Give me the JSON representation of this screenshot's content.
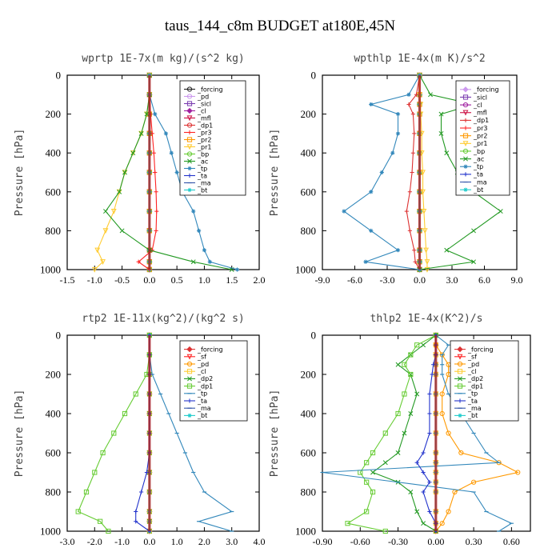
{
  "figure_title": "taus_144_c8m  BUDGET at180E,45N",
  "chart_data": [
    {
      "type": "line",
      "title": "wprtp  1E-7x(m kg)/(s^2 kg)",
      "ylabel": "Pressure [hPa]",
      "xlim": [
        -1.5,
        2.0
      ],
      "ylim": [
        1000,
        0
      ],
      "xticks": [
        "-1.5",
        "-1.0",
        "-0.5",
        "0.0",
        "0.5",
        "1.0",
        "1.5",
        "2.0"
      ],
      "yticks": [
        "0",
        "200",
        "400",
        "600",
        "800",
        "1000"
      ],
      "pressure": [
        0,
        100,
        200,
        300,
        400,
        500,
        600,
        700,
        800,
        900,
        960,
        1000
      ],
      "series": [
        {
          "name": "_forcing",
          "color": "#222222",
          "marker": "circle",
          "values": [
            0,
            0,
            0,
            0,
            0,
            0,
            0,
            0,
            0,
            0,
            0,
            0
          ]
        },
        {
          "name": "_pd",
          "color": "#cc99ee",
          "marker": "circle",
          "values": [
            0,
            0,
            0,
            0,
            0,
            0,
            0,
            0,
            0,
            0,
            0,
            0
          ]
        },
        {
          "name": "_sicl",
          "color": "#7a3db0",
          "marker": "square",
          "values": [
            0,
            0,
            0,
            0,
            0,
            0,
            0,
            0,
            0,
            0,
            0,
            0
          ]
        },
        {
          "name": "_cl",
          "color": "#a020a0",
          "marker": "diamond",
          "values": [
            0,
            0,
            0,
            0,
            0,
            0,
            0,
            0,
            0,
            0,
            0,
            0
          ]
        },
        {
          "name": "_mfl",
          "color": "#cc1144",
          "marker": "triangle",
          "values": [
            0,
            0,
            0,
            0,
            0,
            0,
            0,
            0,
            0,
            0,
            0,
            0
          ]
        },
        {
          "name": "_dp1",
          "color": "#dd3333",
          "marker": "circle",
          "values": [
            0,
            0,
            0,
            0,
            0,
            0,
            0,
            0,
            0,
            0,
            0,
            0
          ]
        },
        {
          "name": "_pr3",
          "color": "#ff2222",
          "marker": "plus",
          "values": [
            0,
            0,
            0.02,
            0.05,
            0.08,
            0.1,
            0.12,
            0.13,
            0.12,
            0.05,
            -0.2,
            0
          ]
        },
        {
          "name": "_pr2",
          "color": "#ff9900",
          "marker": "square",
          "values": [
            0,
            0,
            0,
            0,
            0,
            0,
            0,
            0,
            0,
            0,
            0,
            0
          ]
        },
        {
          "name": "_pr1",
          "color": "#ffcc33",
          "marker": "triangle",
          "values": [
            0,
            0,
            -0.05,
            -0.15,
            -0.3,
            -0.45,
            -0.55,
            -0.65,
            -0.8,
            -0.95,
            -0.85,
            -1.0
          ]
        },
        {
          "name": "_bp",
          "color": "#66cc33",
          "marker": "circle",
          "values": [
            0,
            0,
            0,
            0,
            0,
            0,
            0,
            0,
            0,
            0,
            0,
            0
          ]
        },
        {
          "name": "_ac",
          "color": "#229922",
          "marker": "x",
          "values": [
            0,
            0,
            -0.05,
            -0.15,
            -0.3,
            -0.45,
            -0.55,
            -0.8,
            -0.5,
            0,
            0.8,
            1.5
          ]
        },
        {
          "name": "_tp",
          "color": "#3388bb",
          "marker": "star",
          "values": [
            0,
            0,
            0.1,
            0.3,
            0.4,
            0.5,
            0.6,
            0.8,
            0.9,
            1.0,
            1.1,
            1.6
          ]
        },
        {
          "name": "_ta",
          "color": "#2233cc",
          "marker": "plus",
          "values": [
            0,
            0,
            0,
            0,
            0,
            0,
            0,
            0,
            0,
            0,
            0,
            0
          ]
        },
        {
          "name": "_ma",
          "color": "#3355aa",
          "marker": "dash",
          "values": [
            0,
            0,
            0,
            0,
            0,
            0,
            0,
            0,
            0,
            0,
            0,
            0
          ]
        },
        {
          "name": "_bt",
          "color": "#22cccc",
          "marker": "star",
          "values": [
            0,
            0,
            0,
            0,
            0,
            0,
            0,
            0,
            0,
            0,
            0,
            0
          ]
        }
      ]
    },
    {
      "type": "line",
      "title": "wpthlp  1E-4x(m K)/s^2",
      "ylabel": "Pressure [hPa]",
      "xlim": [
        -9.0,
        9.0
      ],
      "ylim": [
        1000,
        0
      ],
      "xticks": [
        "-9.0",
        "-6.0",
        "-3.0",
        "0.0",
        "3.0",
        "6.0",
        "9.0"
      ],
      "yticks": [
        "0",
        "200",
        "400",
        "600",
        "800",
        "1000"
      ],
      "pressure": [
        0,
        100,
        150,
        200,
        300,
        400,
        500,
        600,
        700,
        800,
        900,
        960,
        1000
      ],
      "series": [
        {
          "name": "_forcing",
          "color": "#cc99ee",
          "marker": "diamond",
          "values": [
            0,
            0,
            0,
            0,
            0,
            0,
            0,
            0,
            0,
            0,
            0,
            0,
            0
          ]
        },
        {
          "name": "_sicl",
          "color": "#7a3db0",
          "marker": "square",
          "values": [
            0,
            0,
            0,
            0,
            0,
            0,
            0,
            0,
            0,
            0,
            0,
            0,
            0
          ]
        },
        {
          "name": "_cl",
          "color": "#a020a0",
          "marker": "circle",
          "values": [
            0,
            0,
            0,
            0,
            0,
            0,
            0,
            0,
            0,
            0,
            0,
            0,
            0
          ]
        },
        {
          "name": "_mfl",
          "color": "#cc1144",
          "marker": "triangle",
          "values": [
            0,
            0,
            0,
            0,
            0,
            0,
            0,
            0,
            0,
            0,
            0,
            0,
            0
          ]
        },
        {
          "name": "_dp1",
          "color": "#dd3333",
          "marker": "plus",
          "values": [
            0,
            -0.3,
            -1.0,
            -0.6,
            -0.5,
            -0.6,
            -0.7,
            -0.9,
            -1.2,
            -0.9,
            -0.5,
            -0.4,
            0
          ]
        },
        {
          "name": "_pr3",
          "color": "#ff2222",
          "marker": "plus",
          "values": [
            0,
            0,
            0,
            0,
            0,
            0,
            0,
            0,
            0,
            0,
            0,
            0,
            0
          ]
        },
        {
          "name": "_pr2",
          "color": "#ff9900",
          "marker": "square",
          "values": [
            0,
            0,
            0,
            0,
            0,
            0,
            0,
            0,
            0,
            0,
            0,
            0,
            0
          ]
        },
        {
          "name": "_pr1",
          "color": "#ffcc33",
          "marker": "triangle",
          "values": [
            0,
            0,
            0.1,
            0.1,
            0.2,
            0.2,
            0.3,
            0.3,
            0.4,
            0.5,
            0.6,
            0.7,
            0.7
          ]
        },
        {
          "name": "_bp",
          "color": "#66cc33",
          "marker": "circle",
          "values": [
            0,
            0,
            0,
            0,
            0,
            0,
            0,
            0,
            0,
            0,
            0,
            0,
            0
          ]
        },
        {
          "name": "_ac",
          "color": "#229922",
          "marker": "x",
          "values": [
            0,
            1.0,
            5.0,
            2.0,
            2.0,
            2.5,
            3.5,
            5.0,
            7.5,
            5.0,
            2.5,
            5.0,
            0
          ]
        },
        {
          "name": "_tp",
          "color": "#3388bb",
          "marker": "star",
          "values": [
            0,
            -1.0,
            -4.5,
            -2.0,
            -2.0,
            -2.5,
            -3.5,
            -4.5,
            -7.0,
            -4.5,
            -2.0,
            -5.0,
            0
          ]
        },
        {
          "name": "_ta",
          "color": "#2233cc",
          "marker": "plus",
          "values": [
            0,
            0,
            0,
            0,
            0,
            0,
            0,
            0,
            0,
            0,
            0,
            0,
            0
          ]
        },
        {
          "name": "_ma",
          "color": "#3355aa",
          "marker": "dash",
          "values": [
            0,
            0,
            0,
            0,
            0,
            0,
            0,
            0,
            0,
            0,
            0,
            0,
            0
          ]
        },
        {
          "name": "_bt",
          "color": "#22cccc",
          "marker": "star",
          "values": [
            0,
            0,
            0,
            0,
            0,
            0,
            0,
            0,
            0,
            0,
            0,
            0,
            0
          ]
        }
      ]
    },
    {
      "type": "line",
      "title": "rtp2  1E-11x(kg^2)/(kg^2 s)",
      "ylabel": "Pressure [hPa]",
      "xlim": [
        -3.0,
        4.0
      ],
      "ylim": [
        1000,
        0
      ],
      "xticks": [
        "-3.0",
        "-2.0",
        "-1.0",
        "0.0",
        "1.0",
        "2.0",
        "3.0",
        "4.0"
      ],
      "yticks": [
        "0",
        "200",
        "400",
        "600",
        "800",
        "1000"
      ],
      "pressure": [
        0,
        100,
        200,
        300,
        400,
        500,
        600,
        700,
        800,
        900,
        950,
        1000
      ],
      "series": [
        {
          "name": "_forcing",
          "color": "#dd3333",
          "marker": "diamond",
          "values": [
            0,
            0,
            0,
            0,
            0,
            0,
            0,
            0,
            0,
            0,
            0,
            0
          ]
        },
        {
          "name": "_sf",
          "color": "#ff2222",
          "marker": "triangle",
          "values": [
            0,
            0,
            0,
            0,
            0,
            0,
            0,
            0,
            0,
            0,
            0,
            0
          ]
        },
        {
          "name": "_pd",
          "color": "#ff9900",
          "marker": "circle",
          "values": [
            0,
            0,
            0,
            0,
            0,
            0,
            0,
            0,
            0,
            0,
            0,
            0
          ]
        },
        {
          "name": "_cl",
          "color": "#ffcc33",
          "marker": "square",
          "values": [
            0,
            0,
            0,
            0,
            0,
            0,
            0,
            0,
            0,
            0,
            0,
            0
          ]
        },
        {
          "name": "_dp2",
          "color": "#229922",
          "marker": "x",
          "values": [
            0,
            0,
            0,
            0,
            0,
            0,
            0,
            0,
            0,
            0,
            0,
            0
          ]
        },
        {
          "name": "_dp1",
          "color": "#66cc33",
          "marker": "square",
          "values": [
            0,
            0,
            -0.1,
            -0.5,
            -0.9,
            -1.3,
            -1.7,
            -2.0,
            -2.3,
            -2.6,
            -1.8,
            -1.5
          ]
        },
        {
          "name": "_tp",
          "color": "#3388bb",
          "marker": "dash",
          "values": [
            0,
            0,
            0.1,
            0.4,
            0.7,
            1.0,
            1.3,
            1.6,
            2.0,
            3.0,
            1.8,
            3.0
          ]
        },
        {
          "name": "_ta",
          "color": "#2233cc",
          "marker": "plus",
          "values": [
            0,
            0,
            0,
            0,
            0,
            0,
            0,
            -0.1,
            -0.3,
            -0.5,
            -0.5,
            0
          ]
        },
        {
          "name": "_ma",
          "color": "#3355aa",
          "marker": "dash",
          "values": [
            0,
            0,
            0,
            0,
            0,
            0,
            0,
            0,
            0,
            0,
            0,
            0
          ]
        },
        {
          "name": "_bt",
          "color": "#22cccc",
          "marker": "star",
          "values": [
            0,
            0,
            0,
            0,
            0,
            0,
            0,
            0,
            0,
            0,
            0,
            0
          ]
        }
      ]
    },
    {
      "type": "line",
      "title": "thlp2  1E-4x(K^2)/s",
      "ylabel": "Pressure [hPa]",
      "xlim": [
        -0.9,
        0.75
      ],
      "ylim": [
        1000,
        0
      ],
      "xticks": [
        "-0.90",
        "-0.60",
        "-0.30",
        "0.00",
        "0.30",
        "0.60"
      ],
      "xtick_values": [
        -0.9,
        -0.6,
        -0.3,
        0.0,
        0.3,
        0.6
      ],
      "yticks": [
        "0",
        "200",
        "400",
        "600",
        "800",
        "1000"
      ],
      "pressure": [
        0,
        50,
        100,
        150,
        200,
        300,
        400,
        500,
        600,
        650,
        700,
        750,
        800,
        900,
        960,
        1000
      ],
      "series": [
        {
          "name": "_forcing",
          "color": "#dd3333",
          "marker": "diamond",
          "values": [
            0,
            0,
            0,
            0,
            0,
            0,
            0,
            0,
            0,
            0,
            0,
            0,
            0,
            0,
            0,
            0
          ]
        },
        {
          "name": "_sf",
          "color": "#ff2222",
          "marker": "triangle",
          "values": [
            0,
            0,
            0,
            0,
            0,
            0,
            0,
            0,
            0,
            0,
            0,
            0,
            0,
            0,
            0,
            0
          ]
        },
        {
          "name": "_pd",
          "color": "#ff9900",
          "marker": "circle",
          "values": [
            0,
            0,
            0.05,
            0.1,
            0.1,
            0.05,
            0.05,
            0.1,
            0.2,
            0.5,
            0.65,
            0.3,
            0.15,
            0.1,
            0.05,
            0
          ]
        },
        {
          "name": "_cl",
          "color": "#ffcc33",
          "marker": "square",
          "values": [
            0,
            0,
            0,
            0,
            0,
            0,
            0,
            0,
            0,
            0,
            0,
            0,
            0,
            0,
            0,
            0
          ]
        },
        {
          "name": "_dp2",
          "color": "#229922",
          "marker": "x",
          "values": [
            0,
            -0.1,
            -0.2,
            -0.3,
            -0.2,
            -0.15,
            -0.2,
            -0.25,
            -0.3,
            -0.4,
            -0.5,
            -0.3,
            -0.2,
            -0.15,
            -0.1,
            0
          ]
        },
        {
          "name": "_dp1",
          "color": "#66cc33",
          "marker": "square",
          "values": [
            0,
            -0.15,
            -0.2,
            -0.25,
            -0.2,
            -0.25,
            -0.3,
            -0.4,
            -0.5,
            -0.55,
            -0.6,
            -0.55,
            -0.5,
            -0.55,
            -0.7,
            -0.4
          ]
        },
        {
          "name": "_tp",
          "color": "#3388bb",
          "marker": "dash",
          "values": [
            0,
            0.1,
            0.05,
            0.05,
            0.05,
            0.1,
            0.2,
            0.3,
            0.4,
            0.5,
            -0.9,
            -0.3,
            0.3,
            0.4,
            0.6,
            0.5
          ]
        },
        {
          "name": "_ta",
          "color": "#2233cc",
          "marker": "plus",
          "values": [
            0,
            0,
            0,
            -0.02,
            -0.03,
            -0.05,
            -0.05,
            -0.05,
            -0.1,
            -0.15,
            -0.1,
            -0.05,
            -0.1,
            -0.05,
            0,
            0
          ]
        },
        {
          "name": "_ma",
          "color": "#3355aa",
          "marker": "dash",
          "values": [
            0,
            0,
            0,
            0,
            0,
            0,
            0,
            0,
            0,
            0,
            0,
            0,
            0,
            0,
            0,
            0
          ]
        },
        {
          "name": "_bt",
          "color": "#22cccc",
          "marker": "star",
          "values": [
            0,
            0,
            0,
            0,
            0,
            0,
            0,
            0,
            0,
            0,
            0,
            0,
            0,
            0,
            0,
            0
          ]
        }
      ]
    }
  ]
}
